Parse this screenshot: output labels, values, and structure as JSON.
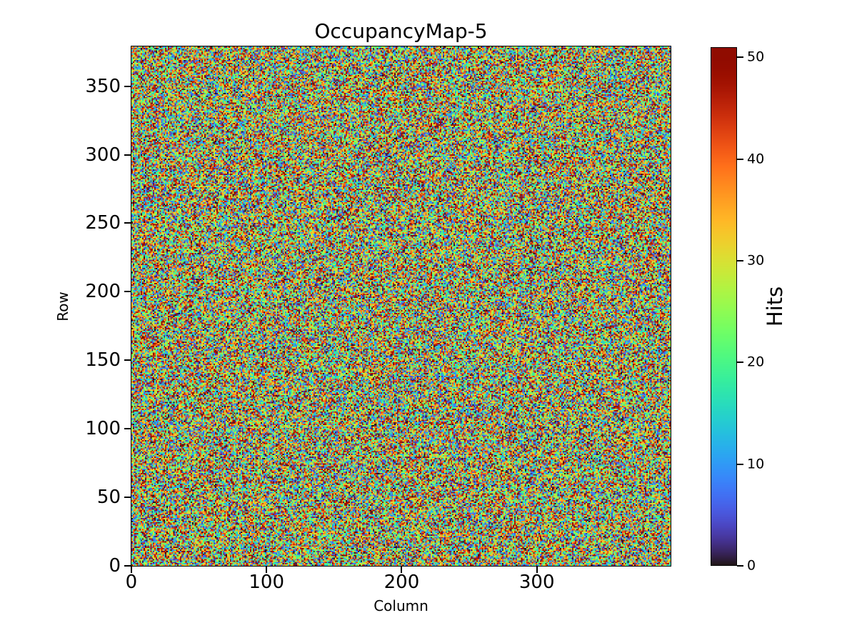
{
  "figure": {
    "background_color": "#ffffff",
    "text_color": "#000000"
  },
  "chart_data": {
    "type": "heatmap",
    "title": "OccupancyMap-5",
    "xlabel": "Column",
    "ylabel": "Row",
    "colorbar_label": "Hits",
    "cols": 400,
    "rows": 380,
    "x_range": [
      0,
      400
    ],
    "y_range": [
      0,
      380
    ],
    "value_range": [
      0,
      51
    ],
    "x_ticks": [
      0,
      100,
      200,
      300
    ],
    "y_ticks": [
      0,
      50,
      100,
      150,
      200,
      250,
      300,
      350
    ],
    "colorbar_ticks": [
      0,
      10,
      20,
      30,
      40,
      50
    ],
    "colormap": "turbo",
    "colormap_min_color": "#30123b",
    "colormap_max_color": "#7a0403",
    "distribution": "dense per-pixel noise; hit counts uniformly spread over 0-51 with no visible structure",
    "grid": false,
    "legend": "none (colorbar on right)"
  }
}
